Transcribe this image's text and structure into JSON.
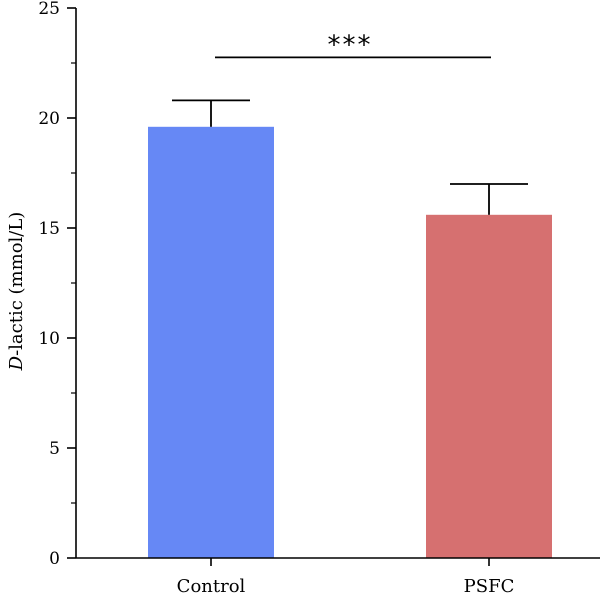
{
  "chart_data": {
    "type": "bar",
    "categories": [
      "Control",
      "PSFC"
    ],
    "values": [
      19.6,
      15.6
    ],
    "errors": [
      1.2,
      1.4
    ],
    "ylabel_italic": "D",
    "ylabel_rest": "-lactic (mmol/L)",
    "ylim": [
      0,
      25
    ],
    "yticks": [
      0,
      5,
      10,
      15,
      20,
      25
    ],
    "grid": false,
    "legend": "none",
    "bar_colors": [
      "#6688f5",
      "#d67070"
    ],
    "significance": {
      "label": "***",
      "between": [
        "Control",
        "PSFC"
      ],
      "level": 22.8
    }
  }
}
